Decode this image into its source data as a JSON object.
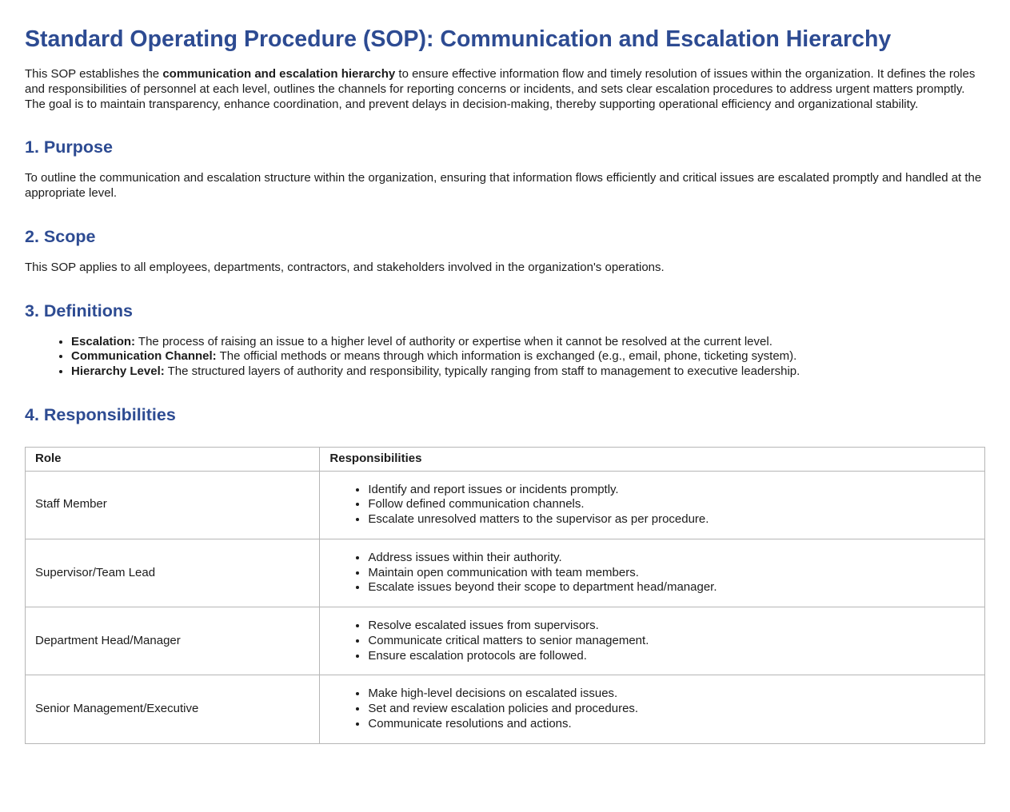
{
  "page": {
    "title": "Standard Operating Procedure (SOP): Communication and Escalation Hierarchy"
  },
  "intro": {
    "parts": [
      {
        "t": "This SOP establishes the "
      },
      {
        "t": "communication and escalation hierarchy",
        "b": true
      },
      {
        "t": " to ensure effective information flow and timely resolution of issues within the organization. It defines the roles and responsibilities of personnel at each level, outlines the channels for reporting concerns or incidents, and sets clear escalation procedures to address urgent matters promptly. The goal is to maintain transparency, enhance coordination, and prevent delays in decision-making, thereby supporting operational efficiency and organizational stability."
      }
    ]
  },
  "sections": {
    "purpose": {
      "heading": "1. Purpose",
      "body": "To outline the communication and escalation structure within the organization, ensuring that information flows efficiently and critical issues are escalated promptly and handled at the appropriate level."
    },
    "scope": {
      "heading": "2. Scope",
      "body": "This SOP applies to all employees, departments, contractors, and stakeholders involved in the organization's operations."
    },
    "definitions": {
      "heading": "3. Definitions",
      "items": [
        {
          "parts": [
            {
              "t": "Escalation:",
              "b": true
            },
            {
              "t": " The process of raising an issue to a higher level of authority or expertise when it cannot be resolved at the current level."
            }
          ]
        },
        {
          "parts": [
            {
              "t": "Communication Channel:",
              "b": true
            },
            {
              "t": " The official methods or means through which information is exchanged (e.g., email, phone, ticketing system)."
            }
          ]
        },
        {
          "parts": [
            {
              "t": "Hierarchy Level:",
              "b": true
            },
            {
              "t": " The structured layers of authority and responsibility, typically ranging from staff to management to executive leadership."
            }
          ]
        }
      ]
    },
    "responsibilities": {
      "heading": "4. Responsibilities",
      "table": {
        "headers": [
          "Role",
          "Responsibilities"
        ],
        "rows": [
          {
            "role": "Staff Member",
            "items": [
              "Identify and report issues or incidents promptly.",
              "Follow defined communication channels.",
              "Escalate unresolved matters to the supervisor as per procedure."
            ]
          },
          {
            "role": "Supervisor/Team Lead",
            "items": [
              "Address issues within their authority.",
              "Maintain open communication with team members.",
              "Escalate issues beyond their scope to department head/manager."
            ]
          },
          {
            "role": "Department Head/Manager",
            "items": [
              "Resolve escalated issues from supervisors.",
              "Communicate critical matters to senior management.",
              "Ensure escalation protocols are followed."
            ]
          },
          {
            "role": "Senior Management/Executive",
            "items": [
              "Make high-level decisions on escalated issues.",
              "Set and review escalation policies and procedures.",
              "Communicate resolutions and actions."
            ]
          }
        ]
      }
    }
  },
  "colors": {
    "heading_blue": "#2d4b92",
    "body_text": "#1c1c1c",
    "table_border": "#b6b6b6",
    "background": "#ffffff"
  }
}
